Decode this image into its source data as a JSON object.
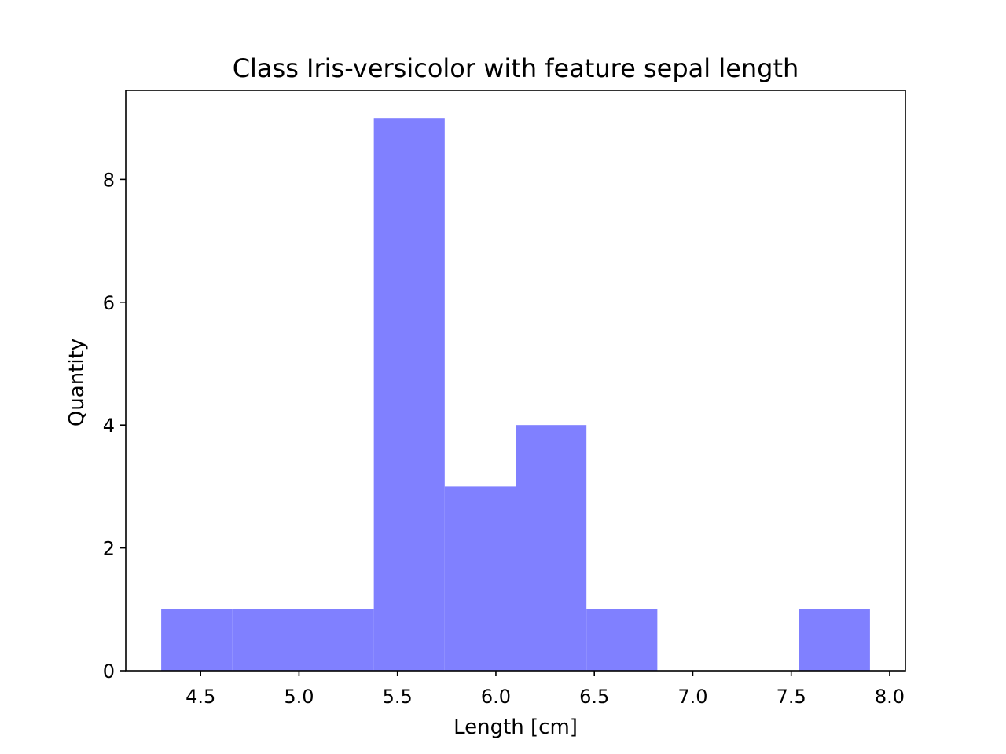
{
  "chart_data": {
    "type": "bar",
    "title": "Class Iris-versicolor with feature sepal length",
    "xlabel": "Length [cm]",
    "ylabel": "Quantity",
    "bin_edges": [
      4.3,
      4.66,
      5.02,
      5.38,
      5.74,
      6.1,
      6.46,
      6.82,
      7.18,
      7.54,
      7.9
    ],
    "values": [
      1,
      1,
      1,
      9,
      3,
      4,
      1,
      0,
      0,
      1
    ],
    "xlim": [
      4.12,
      8.08
    ],
    "ylim": [
      0,
      9.45
    ],
    "xticks": [
      4.5,
      5.0,
      5.5,
      6.0,
      6.5,
      7.0,
      7.5,
      8.0
    ],
    "xtick_labels": [
      "4.5",
      "5.0",
      "5.5",
      "6.0",
      "6.5",
      "7.0",
      "7.5",
      "8.0"
    ],
    "yticks": [
      0,
      2,
      4,
      6,
      8
    ],
    "ytick_labels": [
      "0",
      "2",
      "4",
      "6",
      "8"
    ],
    "bar_color": "#8080ff",
    "grid": false,
    "legend": "none"
  }
}
